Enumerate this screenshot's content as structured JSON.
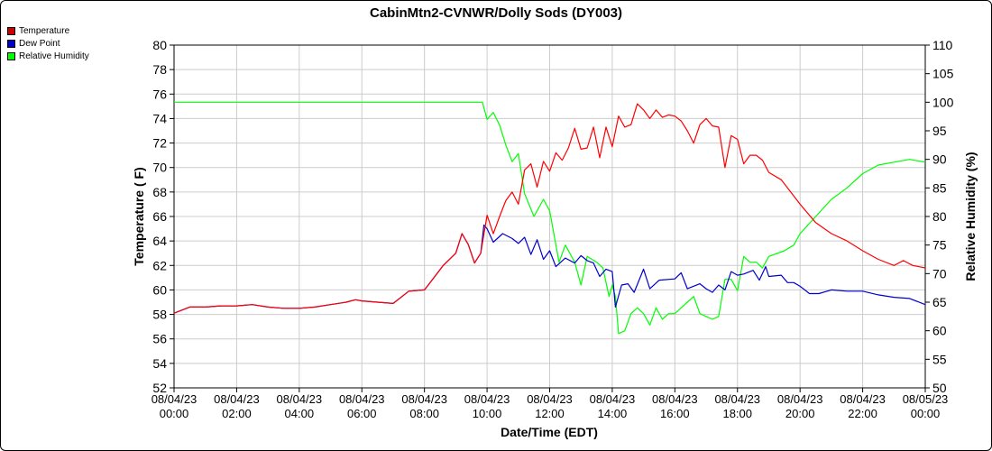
{
  "chart_data": {
    "type": "line",
    "title": "CabinMtn2-CVNWR/Dolly Sods (DY003)",
    "xlabel": "Date/Time (EDT)",
    "ylabel": "Temperature ( F)",
    "y2label": "Relative Humidity (%)",
    "x_range_hours": [
      0,
      24
    ],
    "ylim": [
      52,
      80
    ],
    "y2lim": [
      50,
      110
    ],
    "grid": true,
    "legend_position": "top-left",
    "x_ticks": [
      {
        "hour": 0,
        "date": "08/04/23",
        "time": "00:00"
      },
      {
        "hour": 2,
        "date": "08/04/23",
        "time": "02:00"
      },
      {
        "hour": 4,
        "date": "08/04/23",
        "time": "04:00"
      },
      {
        "hour": 6,
        "date": "08/04/23",
        "time": "06:00"
      },
      {
        "hour": 8,
        "date": "08/04/23",
        "time": "08:00"
      },
      {
        "hour": 10,
        "date": "08/04/23",
        "time": "10:00"
      },
      {
        "hour": 12,
        "date": "08/04/23",
        "time": "12:00"
      },
      {
        "hour": 14,
        "date": "08/04/23",
        "time": "14:00"
      },
      {
        "hour": 16,
        "date": "08/04/23",
        "time": "16:00"
      },
      {
        "hour": 18,
        "date": "08/04/23",
        "time": "18:00"
      },
      {
        "hour": 20,
        "date": "08/04/23",
        "time": "20:00"
      },
      {
        "hour": 22,
        "date": "08/04/23",
        "time": "22:00"
      },
      {
        "hour": 24,
        "date": "08/05/23",
        "time": "00:00"
      }
    ],
    "y_ticks": [
      "52",
      "54",
      "56",
      "58",
      "60",
      "62",
      "64",
      "66",
      "68",
      "70",
      "72",
      "74",
      "76",
      "78",
      "80"
    ],
    "y2_ticks": [
      "50",
      "55",
      "60",
      "65",
      "70",
      "75",
      "80",
      "85",
      "90",
      "95",
      "100",
      "105",
      "110"
    ],
    "series": [
      {
        "name": "Temperature",
        "axis": "left",
        "color": "#ff0000",
        "points": [
          [
            0,
            58.1
          ],
          [
            0.5,
            58.6
          ],
          [
            1,
            58.6
          ],
          [
            1.5,
            58.7
          ],
          [
            2,
            58.7
          ],
          [
            2.5,
            58.8
          ],
          [
            3,
            58.6
          ],
          [
            3.5,
            58.5
          ],
          [
            4,
            58.5
          ],
          [
            4.5,
            58.6
          ],
          [
            5,
            58.8
          ],
          [
            5.5,
            59.0
          ],
          [
            5.8,
            59.2
          ],
          [
            6,
            59.1
          ],
          [
            6.5,
            59.0
          ],
          [
            7,
            58.9
          ],
          [
            7.5,
            59.9
          ],
          [
            8,
            60.0
          ],
          [
            8.3,
            61.0
          ],
          [
            8.6,
            62.0
          ],
          [
            9,
            63.0
          ],
          [
            9.2,
            64.6
          ],
          [
            9.4,
            63.7
          ],
          [
            9.6,
            62.2
          ],
          [
            9.8,
            63.0
          ],
          [
            10,
            66.1
          ],
          [
            10.2,
            64.6
          ],
          [
            10.4,
            66.0
          ],
          [
            10.6,
            67.3
          ],
          [
            10.8,
            68.0
          ],
          [
            11,
            67.0
          ],
          [
            11.2,
            69.8
          ],
          [
            11.4,
            70.3
          ],
          [
            11.6,
            68.4
          ],
          [
            11.8,
            70.5
          ],
          [
            12,
            69.7
          ],
          [
            12.2,
            71.2
          ],
          [
            12.4,
            70.6
          ],
          [
            12.6,
            71.6
          ],
          [
            12.8,
            73.2
          ],
          [
            13,
            71.5
          ],
          [
            13.2,
            71.6
          ],
          [
            13.4,
            73.3
          ],
          [
            13.6,
            70.8
          ],
          [
            13.8,
            73.3
          ],
          [
            14,
            71.7
          ],
          [
            14.2,
            74.2
          ],
          [
            14.4,
            73.3
          ],
          [
            14.6,
            73.5
          ],
          [
            14.8,
            75.2
          ],
          [
            15,
            74.7
          ],
          [
            15.2,
            74.0
          ],
          [
            15.4,
            74.7
          ],
          [
            15.6,
            74.1
          ],
          [
            15.8,
            74.3
          ],
          [
            16,
            74.2
          ],
          [
            16.2,
            73.8
          ],
          [
            16.4,
            73.0
          ],
          [
            16.6,
            72.0
          ],
          [
            16.8,
            73.5
          ],
          [
            17,
            74.0
          ],
          [
            17.2,
            73.4
          ],
          [
            17.4,
            73.3
          ],
          [
            17.6,
            70.0
          ],
          [
            17.8,
            72.6
          ],
          [
            18,
            72.3
          ],
          [
            18.2,
            70.3
          ],
          [
            18.4,
            71.0
          ],
          [
            18.6,
            71.0
          ],
          [
            18.8,
            70.6
          ],
          [
            19,
            69.6
          ],
          [
            19.4,
            69.0
          ],
          [
            20,
            67.0
          ],
          [
            20.5,
            65.5
          ],
          [
            21,
            64.6
          ],
          [
            21.5,
            64.0
          ],
          [
            22,
            63.2
          ],
          [
            22.5,
            62.5
          ],
          [
            23,
            62.0
          ],
          [
            23.3,
            62.4
          ],
          [
            23.6,
            62.0
          ],
          [
            24,
            61.8
          ]
        ]
      },
      {
        "name": "Dew Point",
        "axis": "left",
        "color": "#0000cc",
        "points": [
          [
            0,
            58.1
          ],
          [
            0.5,
            58.6
          ],
          [
            1,
            58.6
          ],
          [
            1.5,
            58.7
          ],
          [
            2,
            58.7
          ],
          [
            2.5,
            58.8
          ],
          [
            3,
            58.6
          ],
          [
            3.5,
            58.5
          ],
          [
            4,
            58.5
          ],
          [
            4.5,
            58.6
          ],
          [
            5,
            58.8
          ],
          [
            5.5,
            59.0
          ],
          [
            5.8,
            59.2
          ],
          [
            6,
            59.1
          ],
          [
            6.5,
            59.0
          ],
          [
            7,
            58.9
          ],
          [
            7.5,
            59.9
          ],
          [
            8,
            60.0
          ],
          [
            8.3,
            61.0
          ],
          [
            8.6,
            62.0
          ],
          [
            9,
            63.0
          ],
          [
            9.2,
            64.6
          ],
          [
            9.4,
            63.7
          ],
          [
            9.6,
            62.2
          ],
          [
            9.8,
            63.0
          ],
          [
            9.9,
            65.3
          ],
          [
            10,
            65.0
          ],
          [
            10.2,
            63.9
          ],
          [
            10.5,
            64.6
          ],
          [
            10.8,
            64.2
          ],
          [
            11,
            63.8
          ],
          [
            11.2,
            64.3
          ],
          [
            11.4,
            62.9
          ],
          [
            11.6,
            64.1
          ],
          [
            11.8,
            62.5
          ],
          [
            12,
            63.2
          ],
          [
            12.2,
            61.9
          ],
          [
            12.5,
            62.6
          ],
          [
            12.8,
            62.2
          ],
          [
            13,
            62.8
          ],
          [
            13.2,
            62.4
          ],
          [
            13.4,
            62.2
          ],
          [
            13.6,
            61.1
          ],
          [
            13.8,
            61.7
          ],
          [
            14,
            61.5
          ],
          [
            14.1,
            58.6
          ],
          [
            14.3,
            60.4
          ],
          [
            14.5,
            60.5
          ],
          [
            14.7,
            59.8
          ],
          [
            15,
            61.7
          ],
          [
            15.2,
            60.1
          ],
          [
            15.5,
            60.8
          ],
          [
            16,
            60.9
          ],
          [
            16.2,
            61.4
          ],
          [
            16.4,
            60.1
          ],
          [
            16.8,
            60.5
          ],
          [
            17,
            60.1
          ],
          [
            17.2,
            59.8
          ],
          [
            17.4,
            60.4
          ],
          [
            17.6,
            60.0
          ],
          [
            17.8,
            61.5
          ],
          [
            18,
            61.2
          ],
          [
            18.2,
            61.3
          ],
          [
            18.5,
            61.6
          ],
          [
            18.7,
            60.8
          ],
          [
            18.9,
            61.9
          ],
          [
            19,
            61.1
          ],
          [
            19.4,
            61.2
          ],
          [
            19.6,
            60.6
          ],
          [
            19.8,
            60.6
          ],
          [
            20,
            60.3
          ],
          [
            20.3,
            59.7
          ],
          [
            20.6,
            59.7
          ],
          [
            21,
            60.0
          ],
          [
            21.5,
            59.9
          ],
          [
            22,
            59.9
          ],
          [
            22.5,
            59.6
          ],
          [
            23,
            59.4
          ],
          [
            23.5,
            59.3
          ],
          [
            24,
            58.8
          ]
        ]
      },
      {
        "name": "Relative Humidity",
        "axis": "right",
        "color": "#00ff00",
        "points": [
          [
            0,
            100
          ],
          [
            9.85,
            100
          ],
          [
            10,
            97.0
          ],
          [
            10.2,
            98.2
          ],
          [
            10.4,
            96.0
          ],
          [
            10.6,
            92.5
          ],
          [
            10.8,
            89.6
          ],
          [
            11,
            91.0
          ],
          [
            11.2,
            84.0
          ],
          [
            11.5,
            80.0
          ],
          [
            11.8,
            83.0
          ],
          [
            12,
            81.0
          ],
          [
            12.3,
            72.0
          ],
          [
            12.5,
            75.0
          ],
          [
            12.8,
            72.0
          ],
          [
            13,
            68.0
          ],
          [
            13.2,
            73.0
          ],
          [
            13.5,
            72.0
          ],
          [
            13.7,
            71.0
          ],
          [
            13.9,
            66.0
          ],
          [
            14,
            68.0
          ],
          [
            14.1,
            66.0
          ],
          [
            14.2,
            59.5
          ],
          [
            14.4,
            60.0
          ],
          [
            14.6,
            63.0
          ],
          [
            14.8,
            64.0
          ],
          [
            15,
            63.0
          ],
          [
            15.2,
            61.0
          ],
          [
            15.4,
            64.0
          ],
          [
            15.6,
            62.0
          ],
          [
            15.8,
            63.0
          ],
          [
            16,
            63.0
          ],
          [
            16.2,
            64.0
          ],
          [
            16.4,
            65.0
          ],
          [
            16.6,
            66.0
          ],
          [
            16.8,
            63.0
          ],
          [
            17,
            62.5
          ],
          [
            17.2,
            62.0
          ],
          [
            17.4,
            62.5
          ],
          [
            17.6,
            69.0
          ],
          [
            17.8,
            69.0
          ],
          [
            18,
            67.0
          ],
          [
            18.2,
            73.0
          ],
          [
            18.4,
            72.0
          ],
          [
            18.6,
            72.0
          ],
          [
            18.8,
            71.0
          ],
          [
            19,
            73.0
          ],
          [
            19.5,
            74.0
          ],
          [
            19.8,
            75.0
          ],
          [
            20,
            77.0
          ],
          [
            20.5,
            80.0
          ],
          [
            21,
            83.0
          ],
          [
            21.5,
            85.0
          ],
          [
            22,
            87.5
          ],
          [
            22.5,
            89.0
          ],
          [
            23,
            89.5
          ],
          [
            23.5,
            90.0
          ],
          [
            24,
            89.5
          ]
        ]
      }
    ]
  }
}
